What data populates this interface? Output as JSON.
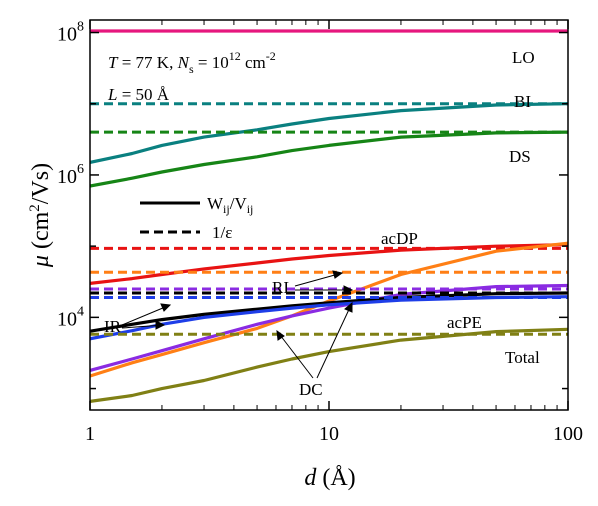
{
  "chart_data": {
    "type": "line",
    "xscale": "log",
    "yscale": "log",
    "xlim": [
      1,
      100
    ],
    "ylim": [
      500,
      150000000
    ],
    "xlabel": "d (Å)",
    "ylabel": "μ (cm²/Vs)",
    "xticks": [
      1,
      10,
      100
    ],
    "yticks": [
      10000,
      1000000,
      100000000
    ],
    "xtick_labels": [
      "1",
      "10",
      "100"
    ],
    "ytick_labels": [
      "10⁴",
      "10⁶",
      "10⁸"
    ],
    "conditions": {
      "line1": "T = 77 K,  Ns = 10¹² cm⁻²",
      "line2": "L = 50 Å"
    },
    "legend": {
      "solid": "Wij/Vij",
      "dashed": "1/ε"
    },
    "series": [
      {
        "name": "LO",
        "color": "#e6177e",
        "solid": {
          "x": [
            1,
            100
          ],
          "y": [
            105000000,
            105000000
          ]
        },
        "dashed": null
      },
      {
        "name": "BI",
        "color": "#0a8080",
        "solid": {
          "x": [
            1,
            1.5,
            2,
            3,
            5,
            7,
            10,
            20,
            50,
            100
          ],
          "y": [
            1500000,
            2000000,
            2600000,
            3400000,
            4300000,
            5200000,
            6200000,
            8000000,
            9600000,
            10000000
          ]
        },
        "dashed": {
          "x": [
            1,
            100
          ],
          "y": [
            10000000,
            10000000
          ]
        }
      },
      {
        "name": "DS",
        "color": "#168516",
        "solid": {
          "x": [
            1,
            1.5,
            2,
            3,
            5,
            7,
            10,
            20,
            50,
            100
          ],
          "y": [
            700000,
            900000,
            1100000,
            1400000,
            1800000,
            2200000,
            2600000,
            3400000,
            3900000,
            4000000
          ]
        },
        "dashed": {
          "x": [
            1,
            100
          ],
          "y": [
            4000000,
            4000000
          ]
        }
      },
      {
        "name": "acDP",
        "color": "#e81313",
        "solid": {
          "x": [
            1,
            1.5,
            2,
            3,
            5,
            7,
            10,
            20,
            50,
            100
          ],
          "y": [
            30000,
            35000,
            40000,
            48000,
            58000,
            66000,
            74000,
            88000,
            100000,
            105000
          ]
        },
        "dashed": {
          "x": [
            1,
            100
          ],
          "y": [
            93000,
            93000
          ]
        }
      },
      {
        "name": "RI",
        "color": "#ff7f15",
        "solid": {
          "x": [
            1,
            1.5,
            2,
            3,
            5,
            7,
            10,
            20,
            50,
            100
          ],
          "y": [
            1500,
            2300,
            3000,
            4400,
            7000,
            10500,
            17000,
            40000,
            85000,
            110000
          ]
        },
        "dashed": {
          "x": [
            1,
            100
          ],
          "y": [
            43000,
            43000
          ]
        }
      },
      {
        "name": "DC",
        "color": "#8a2be2",
        "solid": {
          "x": [
            1,
            1.5,
            2,
            3,
            5,
            7,
            10,
            20,
            50,
            100
          ],
          "y": [
            1800,
            2600,
            3400,
            5000,
            8000,
            10500,
            13500,
            21000,
            27000,
            28000
          ]
        },
        "dashed": {
          "x": [
            1,
            100
          ],
          "y": [
            25000,
            25000
          ]
        }
      },
      {
        "name": "IR",
        "color": "#000000",
        "solid": {
          "x": [
            1,
            1.5,
            2,
            3,
            5,
            7,
            10,
            20,
            50,
            100
          ],
          "y": [
            6400,
            8000,
            9300,
            11000,
            13000,
            14500,
            16000,
            19000,
            21500,
            22000
          ]
        },
        "dashed": {
          "x": [
            1,
            100
          ],
          "y": [
            22000,
            22000
          ]
        }
      },
      {
        "name": "acPE",
        "color": "#1e3ee8",
        "solid": {
          "x": [
            1,
            1.5,
            2,
            3,
            5,
            7,
            10,
            20,
            50,
            100
          ],
          "y": [
            5000,
            6500,
            8000,
            10000,
            12000,
            13500,
            15000,
            17500,
            19000,
            19500
          ]
        },
        "dashed": {
          "x": [
            1,
            100
          ],
          "y": [
            19000,
            19000
          ]
        }
      },
      {
        "name": "Total",
        "color": "#808015",
        "solid": {
          "x": [
            1,
            1.5,
            2,
            3,
            5,
            7,
            10,
            20,
            50,
            100
          ],
          "y": [
            660,
            800,
            1000,
            1300,
            2000,
            2600,
            3300,
            4800,
            6300,
            6800
          ]
        },
        "dashed": {
          "x": [
            1,
            100
          ],
          "y": [
            5800,
            5800
          ]
        }
      }
    ],
    "annotations": {
      "LO": "LO",
      "BI": "BI",
      "DS": "DS",
      "acDP": "acDP",
      "RI": "RI",
      "IR": "IR",
      "acPE": "acPE",
      "DC": "DC",
      "Total": "Total"
    }
  }
}
